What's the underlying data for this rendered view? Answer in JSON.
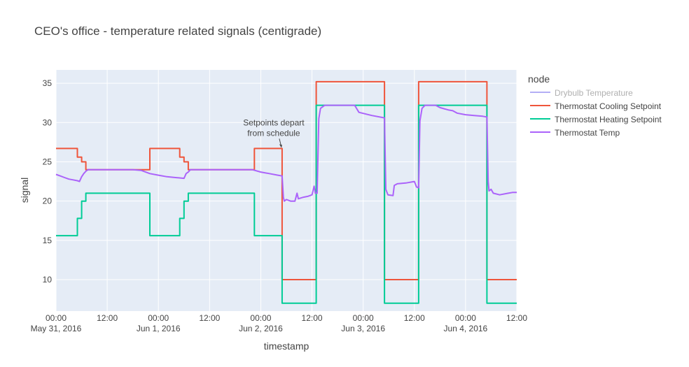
{
  "chart_data": {
    "type": "line",
    "title": "CEO's office - temperature related signals (centigrade)",
    "xlabel": "timestamp",
    "ylabel": "signal",
    "legend_title": "node",
    "legend_position": "right",
    "grid": true,
    "x_unit": "hours from May 31, 2016 00:00",
    "xlim": [
      0,
      108
    ],
    "ylim": [
      6,
      36.7
    ],
    "y_ticks": [
      10,
      15,
      20,
      25,
      30,
      35
    ],
    "x_ticks": [
      {
        "x": 0,
        "line1": "00:00",
        "line2": "May 31, 2016"
      },
      {
        "x": 12,
        "line1": "12:00",
        "line2": ""
      },
      {
        "x": 24,
        "line1": "00:00",
        "line2": "Jun 1, 2016"
      },
      {
        "x": 36,
        "line1": "12:00",
        "line2": ""
      },
      {
        "x": 48,
        "line1": "00:00",
        "line2": "Jun 2, 2016"
      },
      {
        "x": 60,
        "line1": "12:00",
        "line2": ""
      },
      {
        "x": 72,
        "line1": "00:00",
        "line2": "Jun 3, 2016"
      },
      {
        "x": 84,
        "line1": "12:00",
        "line2": ""
      },
      {
        "x": 96,
        "line1": "00:00",
        "line2": "Jun 4, 2016"
      },
      {
        "x": 108,
        "line1": "12:00",
        "line2": ""
      }
    ],
    "series": [
      {
        "name": "Drybulb Temperature",
        "color": "#b3aef5",
        "legend_only": true,
        "points": []
      },
      {
        "name": "Thermostat Cooling Setpoint",
        "color": "#ef553b",
        "points": [
          [
            0,
            26.7
          ],
          [
            5,
            26.7
          ],
          [
            5,
            25.6
          ],
          [
            6,
            25.6
          ],
          [
            6,
            25
          ],
          [
            7,
            25
          ],
          [
            7,
            24
          ],
          [
            22,
            24
          ],
          [
            22,
            26.7
          ],
          [
            29,
            26.7
          ],
          [
            29,
            25.6
          ],
          [
            30,
            25.6
          ],
          [
            30,
            25
          ],
          [
            31,
            25
          ],
          [
            31,
            24
          ],
          [
            46.5,
            24
          ],
          [
            46.5,
            26.7
          ],
          [
            53,
            26.7
          ],
          [
            53,
            10
          ],
          [
            61,
            10
          ],
          [
            61,
            35.2
          ],
          [
            77,
            35.2
          ],
          [
            77,
            10
          ],
          [
            85,
            10
          ],
          [
            85,
            35.2
          ],
          [
            101,
            35.2
          ],
          [
            101,
            10
          ],
          [
            108,
            10
          ]
        ]
      },
      {
        "name": "Thermostat Heating Setpoint",
        "color": "#00cc96",
        "points": [
          [
            0,
            15.6
          ],
          [
            5,
            15.6
          ],
          [
            5,
            17.8
          ],
          [
            6,
            17.8
          ],
          [
            6,
            20
          ],
          [
            7,
            20
          ],
          [
            7,
            21
          ],
          [
            22,
            21
          ],
          [
            22,
            15.6
          ],
          [
            29,
            15.6
          ],
          [
            29,
            17.8
          ],
          [
            30,
            17.8
          ],
          [
            30,
            20
          ],
          [
            31,
            20
          ],
          [
            31,
            21
          ],
          [
            46.5,
            21
          ],
          [
            46.5,
            15.6
          ],
          [
            53,
            15.6
          ],
          [
            53,
            7
          ],
          [
            61,
            7
          ],
          [
            61,
            32.2
          ],
          [
            77,
            32.2
          ],
          [
            77,
            7
          ],
          [
            85,
            7
          ],
          [
            85,
            32.2
          ],
          [
            101,
            32.2
          ],
          [
            101,
            7
          ],
          [
            108,
            7
          ]
        ]
      },
      {
        "name": "Thermostat Temp",
        "color": "#ab63fa",
        "points": [
          [
            0,
            23.4
          ],
          [
            1,
            23.2
          ],
          [
            2,
            23
          ],
          [
            3,
            22.8
          ],
          [
            4,
            22.7
          ],
          [
            5,
            22.6
          ],
          [
            5.5,
            22.5
          ],
          [
            6,
            23.1
          ],
          [
            6.5,
            23.5
          ],
          [
            7,
            23.8
          ],
          [
            7.5,
            24
          ],
          [
            12,
            24
          ],
          [
            18,
            24
          ],
          [
            20,
            23.9
          ],
          [
            22,
            23.5
          ],
          [
            24,
            23.3
          ],
          [
            26,
            23.1
          ],
          [
            28,
            23
          ],
          [
            30,
            22.9
          ],
          [
            30.5,
            23.5
          ],
          [
            31,
            23.7
          ],
          [
            31.5,
            24
          ],
          [
            40,
            24
          ],
          [
            46,
            24
          ],
          [
            48,
            23.7
          ],
          [
            50,
            23.5
          ],
          [
            52,
            23.3
          ],
          [
            53,
            23.2
          ],
          [
            53.3,
            20.5
          ],
          [
            53.5,
            20
          ],
          [
            54,
            20.2
          ],
          [
            55,
            20
          ],
          [
            56,
            20
          ],
          [
            56.5,
            21
          ],
          [
            56.8,
            20.3
          ],
          [
            58,
            20.5
          ],
          [
            59,
            20.6
          ],
          [
            60,
            20.8
          ],
          [
            60.5,
            21.9
          ],
          [
            60.8,
            21
          ],
          [
            61,
            21
          ],
          [
            61.2,
            21
          ],
          [
            61.6,
            30.5
          ],
          [
            62,
            31.8
          ],
          [
            63,
            32.2
          ],
          [
            70,
            32.2
          ],
          [
            71,
            31.3
          ],
          [
            74,
            30.9
          ],
          [
            77,
            30.6
          ],
          [
            77.3,
            21.5
          ],
          [
            77.8,
            20.8
          ],
          [
            79,
            20.7
          ],
          [
            79.3,
            22
          ],
          [
            80,
            22.2
          ],
          [
            82,
            22.3
          ],
          [
            84,
            22.5
          ],
          [
            84.5,
            21.8
          ],
          [
            85,
            21.7
          ],
          [
            85.3,
            30.2
          ],
          [
            85.8,
            31.8
          ],
          [
            86.5,
            32.2
          ],
          [
            89,
            32.2
          ],
          [
            90,
            31.9
          ],
          [
            92,
            31.6
          ],
          [
            93,
            31.5
          ],
          [
            94,
            31.2
          ],
          [
            96,
            31
          ],
          [
            98,
            30.9
          ],
          [
            100,
            30.8
          ],
          [
            101,
            30.7
          ],
          [
            101.3,
            22.5
          ],
          [
            101.5,
            21.3
          ],
          [
            102,
            21.5
          ],
          [
            102.5,
            21
          ],
          [
            104,
            20.8
          ],
          [
            106,
            21
          ],
          [
            107,
            21.1
          ],
          [
            108,
            21.1
          ]
        ]
      }
    ],
    "annotations": [
      {
        "text_lines": [
          "Setpoints depart",
          "from schedule"
        ],
        "x": 53,
        "y": 26.7,
        "arrow": true
      }
    ]
  }
}
